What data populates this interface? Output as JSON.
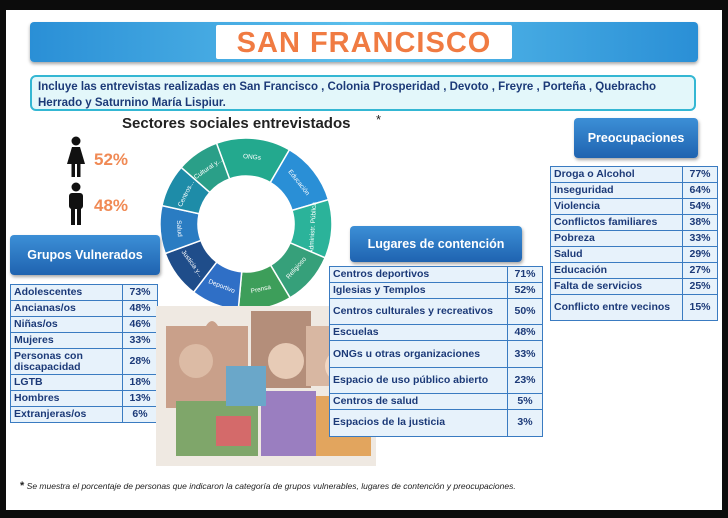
{
  "title": "SAN FRANCISCO",
  "intro": "Incluye las entrevistas realizadas en San Francisco , Colonia Prosperidad , Devoto , Freyre , Porteña , Quebracho Herrado y Saturnino María Lispiur.",
  "sectors_title": "Sectores sociales entrevistados",
  "sectors_title_mark": "*",
  "gender": {
    "female_pct": "52%",
    "male_pct": "48%"
  },
  "colors": {
    "header": "#2a74c6",
    "table_fill": "#e7f2fb",
    "accent": "#f07b42"
  },
  "chart_data": [
    {
      "type": "pie",
      "title": "Sectores sociales entrevistados",
      "labels": [
        "ONGs",
        "Educación",
        "Administr. Pública",
        "Religioso",
        "Prensa",
        "Deportivo",
        "Justicia y...",
        "Salud",
        "Centros...",
        "Cultural y..."
      ],
      "values": [
        14,
        12,
        11,
        10,
        10,
        9,
        9,
        9,
        8,
        8
      ]
    },
    {
      "type": "table",
      "title": "Grupos Vulnerados",
      "rows": [
        {
          "label": "Adolescentes",
          "value": "73%"
        },
        {
          "label": "Ancianas/os",
          "value": "48%"
        },
        {
          "label": "Niñas/os",
          "value": "46%"
        },
        {
          "label": "Mujeres",
          "value": "33%"
        },
        {
          "label": "Personas con discapacidad",
          "value": "28%"
        },
        {
          "label": "LGTB",
          "value": "18%"
        },
        {
          "label": "Hombres",
          "value": "13%"
        },
        {
          "label": "Extranjeras/os",
          "value": "6%"
        }
      ]
    },
    {
      "type": "table",
      "title": "Lugares de contención",
      "rows": [
        {
          "label": "Centros deportivos",
          "value": "71%"
        },
        {
          "label": "Iglesias y Templos",
          "value": "52%"
        },
        {
          "label": "Centros culturales y recreativos",
          "value": "50%"
        },
        {
          "label": "Escuelas",
          "value": "48%"
        },
        {
          "label": "ONGs u otras organizaciones",
          "value": "33%"
        },
        {
          "label": "Espacio de uso público abierto",
          "value": "23%"
        },
        {
          "label": "Centros de salud",
          "value": "5%"
        },
        {
          "label": "Espacios de la justicia",
          "value": "3%"
        }
      ]
    },
    {
      "type": "table",
      "title": "Preocupaciones",
      "rows": [
        {
          "label": "Droga o Alcohol",
          "value": "77%"
        },
        {
          "label": "Inseguridad",
          "value": "64%"
        },
        {
          "label": "Violencia",
          "value": "54%"
        },
        {
          "label": "Conflictos familiares",
          "value": "38%"
        },
        {
          "label": "Pobreza",
          "value": "33%"
        },
        {
          "label": "Salud",
          "value": "29%"
        },
        {
          "label": "Educación",
          "value": "27%"
        },
        {
          "label": "Falta de servicios",
          "value": "25%"
        },
        {
          "label": "Conflicto entre vecinos",
          "value": "15%"
        }
      ]
    }
  ],
  "footnote_mark": "*",
  "footnote": "Se muestra el porcentaje de personas que indicaron la categoría de grupos vulnerables, lugares de contención y preocupaciones."
}
